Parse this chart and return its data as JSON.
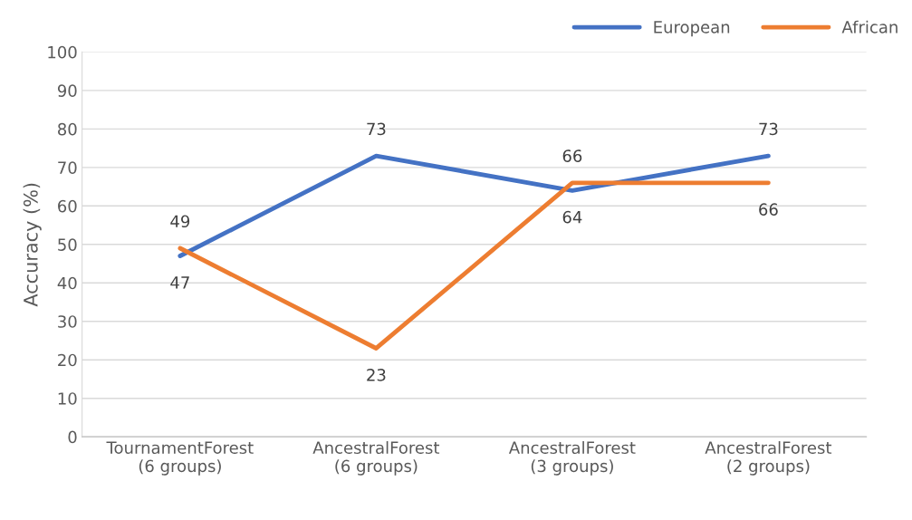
{
  "chart_data": {
    "type": "line",
    "categories": [
      "TournamentForest\n(6 groups)",
      "AncestralForest\n(6 groups)",
      "AncestralForest\n(3 groups)",
      "AncestralForest\n(2 groups)"
    ],
    "series": [
      {
        "name": "European",
        "color": "#4472c4",
        "values": [
          47,
          73,
          64,
          73
        ]
      },
      {
        "name": "African",
        "color": "#ed7d31",
        "values": [
          49,
          23,
          66,
          66
        ]
      }
    ],
    "ylabel": "Accuracy (%)",
    "ylim": [
      0,
      100
    ],
    "yticks": [
      0,
      10,
      20,
      30,
      40,
      50,
      60,
      70,
      80,
      90,
      100
    ],
    "grid": "y",
    "legend": "top right",
    "data_labels": true,
    "marker": "none",
    "line_style": "solid"
  }
}
